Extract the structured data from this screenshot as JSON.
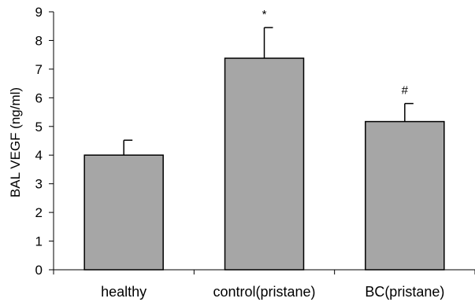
{
  "chart_data": {
    "type": "bar",
    "ylabel": "BAL VEGF (ng/ml)",
    "xlabel": "",
    "ylim": [
      0,
      9
    ],
    "yticks": [
      0,
      1,
      2,
      3,
      4,
      5,
      6,
      7,
      8,
      9
    ],
    "grid": false,
    "categories": [
      "healthy",
      "control(pristane)",
      "BC(pristane)"
    ],
    "values": [
      4.0,
      7.38,
      5.17
    ],
    "errors": [
      0.52,
      1.07,
      0.63
    ],
    "annotations": [
      "",
      "*",
      "#"
    ],
    "colors": {
      "bar_fill": "#a6a6a6",
      "bar_stroke": "#000000",
      "axis": "#000000"
    }
  }
}
